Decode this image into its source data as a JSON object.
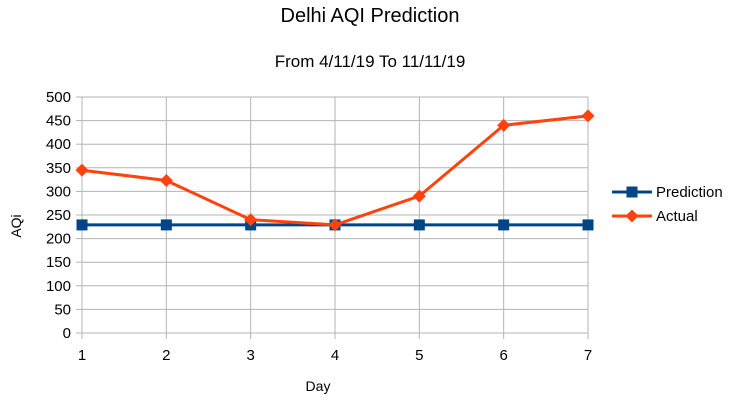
{
  "chart_data": {
    "type": "line",
    "title": "Delhi AQI Prediction",
    "subtitle": "From 4/11/19 To 11/11/19",
    "xlabel": "Day",
    "ylabel": "AQi",
    "x": [
      1,
      2,
      3,
      4,
      5,
      6,
      7
    ],
    "ylim": [
      0,
      500
    ],
    "yticks": [
      0,
      50,
      100,
      150,
      200,
      250,
      300,
      350,
      400,
      450,
      500
    ],
    "grid": true,
    "legend_position": "right",
    "series": [
      {
        "name": "Prediction",
        "values": [
          229,
          229,
          229,
          229,
          229,
          229,
          229
        ],
        "color": "#004586",
        "marker": "square"
      },
      {
        "name": "Actual",
        "values": [
          345,
          323,
          240,
          229,
          290,
          440,
          460
        ],
        "color": "#ff420e",
        "marker": "diamond"
      }
    ]
  }
}
